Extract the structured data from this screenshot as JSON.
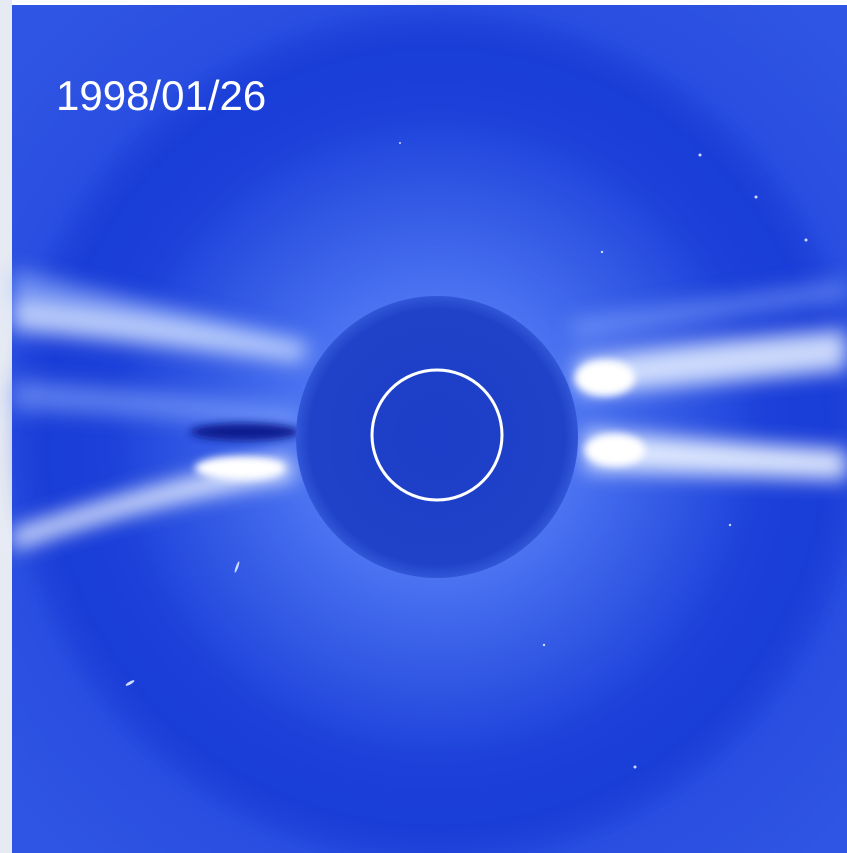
{
  "date_label": "1998/01/26"
}
